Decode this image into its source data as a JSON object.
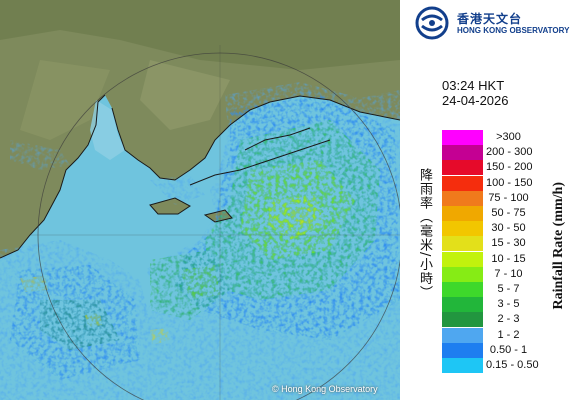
{
  "logo": {
    "name_cn": "香港天文台",
    "name_en": "HONG KONG OBSERVATORY"
  },
  "timestamp": {
    "time": "03:24 HKT",
    "date": "24-04-2026"
  },
  "legend": {
    "title_cn": "降雨率（毫米/小時）",
    "title_en": "Rainfall Rate (mm/h)",
    "items": [
      {
        "label": ">300",
        "color": "#ff00ff"
      },
      {
        "label": "200 - 300",
        "color": "#c40093"
      },
      {
        "label": "150 - 200",
        "color": "#e60a2a"
      },
      {
        "label": "100 - 150",
        "color": "#f52d0d"
      },
      {
        "label": "75 - 100",
        "color": "#f07a1c"
      },
      {
        "label": "50 - 75",
        "color": "#f0a800"
      },
      {
        "label": "30 - 50",
        "color": "#f2c600"
      },
      {
        "label": "15 - 30",
        "color": "#e3e01a"
      },
      {
        "label": "10 - 15",
        "color": "#c2f20d"
      },
      {
        "label": "7 - 10",
        "color": "#86ec15"
      },
      {
        "label": "5 - 7",
        "color": "#3ed82b"
      },
      {
        "label": "3 - 5",
        "color": "#22b63a"
      },
      {
        "label": "2 - 3",
        "color": "#22963f"
      },
      {
        "label": "1 - 2",
        "color": "#4fa7f0"
      },
      {
        "label": "0.50 - 1",
        "color": "#1e7ef0"
      },
      {
        "label": "0.15 - 0.50",
        "color": "#1ec6f5"
      }
    ]
  },
  "map": {
    "copyright": "© Hong Kong Observatory",
    "sea_color": "#6fc4de",
    "land_color": "#7e8a5c"
  }
}
